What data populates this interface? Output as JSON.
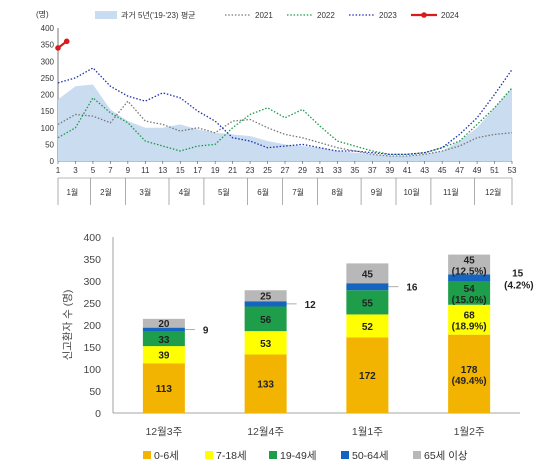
{
  "chart_data": [
    {
      "type": "line",
      "ylabel": "(명)",
      "ylim": [
        0,
        400
      ],
      "yticks": [
        0,
        50,
        100,
        150,
        200,
        250,
        300,
        350,
        400
      ],
      "xticks": [
        1,
        3,
        5,
        7,
        9,
        11,
        13,
        15,
        17,
        19,
        21,
        23,
        25,
        27,
        29,
        31,
        33,
        35,
        37,
        39,
        41,
        43,
        45,
        47,
        49,
        51,
        53
      ],
      "xlim": [
        1,
        53
      ],
      "months": [
        {
          "label": "1월",
          "from": 1,
          "to": 4
        },
        {
          "label": "2월",
          "from": 5,
          "to": 8
        },
        {
          "label": "3월",
          "from": 9,
          "to": 13
        },
        {
          "label": "4월",
          "from": 14,
          "to": 17
        },
        {
          "label": "5월",
          "from": 18,
          "to": 22
        },
        {
          "label": "6월",
          "from": 23,
          "to": 26
        },
        {
          "label": "7월",
          "from": 27,
          "to": 30
        },
        {
          "label": "8월",
          "from": 31,
          "to": 35
        },
        {
          "label": "9월",
          "from": 36,
          "to": 39
        },
        {
          "label": "10월",
          "from": 40,
          "to": 43
        },
        {
          "label": "11월",
          "from": 44,
          "to": 48
        },
        {
          "label": "12월",
          "from": 49,
          "to": 53
        }
      ],
      "series": [
        {
          "name": "과거 5년('19-'23) 평균",
          "style": "area",
          "color": "#c9dcf0",
          "x": [
            1,
            3,
            5,
            7,
            9,
            11,
            13,
            15,
            17,
            19,
            21,
            23,
            25,
            27,
            29,
            31,
            33,
            35,
            37,
            39,
            41,
            43,
            45,
            47,
            49,
            51,
            53
          ],
          "values": [
            185,
            225,
            230,
            155,
            120,
            100,
            100,
            110,
            95,
            85,
            80,
            75,
            60,
            50,
            45,
            40,
            30,
            25,
            20,
            15,
            15,
            20,
            30,
            60,
            100,
            160,
            220
          ]
        },
        {
          "name": "2021",
          "style": "dotted",
          "color": "#777777",
          "x": [
            1,
            3,
            5,
            7,
            9,
            11,
            13,
            15,
            17,
            19,
            21,
            23,
            25,
            27,
            29,
            31,
            33,
            35,
            37,
            39,
            41,
            43,
            45,
            47,
            49,
            51,
            53
          ],
          "values": [
            110,
            140,
            135,
            115,
            180,
            120,
            110,
            90,
            100,
            85,
            120,
            125,
            100,
            80,
            70,
            55,
            40,
            30,
            20,
            15,
            15,
            20,
            30,
            45,
            70,
            80,
            85
          ]
        },
        {
          "name": "2022",
          "style": "dotted",
          "color": "#1a9a4a",
          "x": [
            1,
            3,
            5,
            7,
            9,
            11,
            13,
            15,
            17,
            19,
            21,
            23,
            25,
            27,
            29,
            31,
            33,
            35,
            37,
            39,
            41,
            43,
            45,
            47,
            49,
            51,
            53
          ],
          "values": [
            70,
            100,
            190,
            145,
            115,
            60,
            45,
            30,
            45,
            50,
            100,
            140,
            160,
            130,
            155,
            105,
            60,
            45,
            30,
            20,
            20,
            25,
            40,
            60,
            110,
            160,
            220
          ]
        },
        {
          "name": "2023",
          "style": "dotted",
          "color": "#1f2fb0",
          "x": [
            1,
            3,
            5,
            7,
            9,
            11,
            13,
            15,
            17,
            19,
            21,
            23,
            25,
            27,
            29,
            31,
            33,
            35,
            37,
            39,
            41,
            43,
            45,
            47,
            49,
            51,
            53
          ],
          "values": [
            235,
            250,
            280,
            225,
            195,
            180,
            205,
            190,
            150,
            120,
            70,
            60,
            40,
            45,
            50,
            40,
            30,
            30,
            25,
            20,
            20,
            25,
            40,
            80,
            130,
            200,
            275
          ]
        },
        {
          "name": "2024",
          "style": "line-marker",
          "color": "#d81b1b",
          "x": [
            1,
            2
          ],
          "values": [
            340,
            360
          ]
        }
      ]
    },
    {
      "type": "bar",
      "stacked": true,
      "ylabel": "신고환자 수 (명)",
      "ylim": [
        0,
        400
      ],
      "yticks": [
        0,
        50,
        100,
        150,
        200,
        250,
        300,
        350,
        400
      ],
      "categories": [
        "12월3주",
        "12월4주",
        "1월1주",
        "1월2주"
      ],
      "series": [
        {
          "name": "0-6세",
          "color": "#f2b400",
          "values": [
            113,
            133,
            172,
            178
          ]
        },
        {
          "name": "7-18세",
          "color": "#ffff00",
          "values": [
            39,
            53,
            52,
            68
          ]
        },
        {
          "name": "19-49세",
          "color": "#1e9e4a",
          "values": [
            33,
            56,
            55,
            54
          ]
        },
        {
          "name": "50-64세",
          "color": "#1565c0",
          "values": [
            9,
            12,
            16,
            15
          ]
        },
        {
          "name": "65세 이상",
          "color": "#b8b8b8",
          "values": [
            20,
            25,
            45,
            45
          ]
        }
      ],
      "annotations": {
        "0-6세": [
          "113",
          "133",
          "172",
          "178\n(49.4%)"
        ],
        "7-18세": [
          "39",
          "53",
          "52",
          "68\n(18.9%)"
        ],
        "19-49세": [
          "33",
          "56",
          "55",
          "54\n(15.0%)"
        ],
        "50-64세": [
          "9",
          "12",
          "16",
          "15\n(4.2%)"
        ],
        "65세 이상": [
          "20",
          "25",
          "45",
          "45\n(12.5%)"
        ]
      }
    }
  ]
}
